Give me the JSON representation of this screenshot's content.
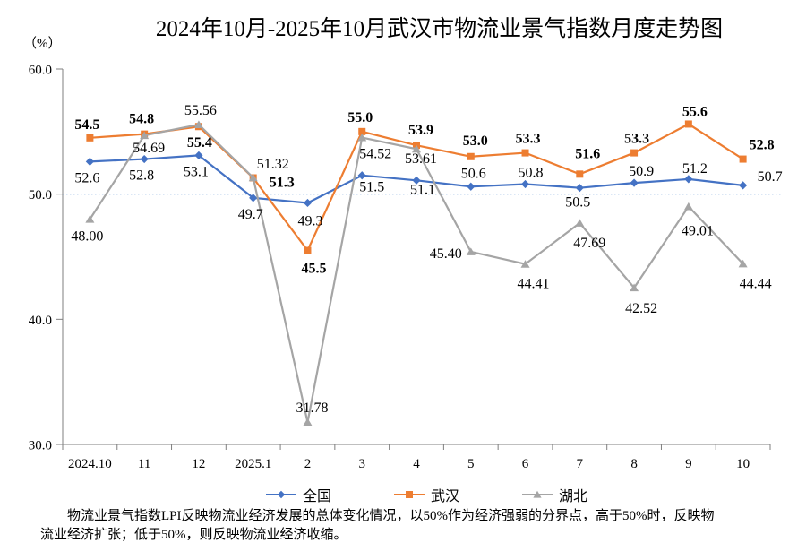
{
  "title": "2024年10月-2025年10月武汉市物流业景气指数月度走势图",
  "unit_label": "（%）",
  "footnote": "物流业景气指数LPI反映物流业经济发展的总体变化情况，以50%作为经济强弱的分界点，高于50%时，反映物流业经济扩张；低于50%，则反映物流业经济收缩。",
  "colors": {
    "axis": "#7f7f7f",
    "reference_line": "#6f9ed7",
    "national": "#4472C4",
    "wuhan": "#ED7D31",
    "hubei": "#A5A5A5",
    "label_text": "#000000"
  },
  "chart_data": {
    "type": "line",
    "title": "2024年10月-2025年10月武汉市物流业景气指数月度走势图",
    "xlabel": "",
    "ylabel": "（%）",
    "categories": [
      "2024.10",
      "11",
      "12",
      "2025.1",
      "2",
      "3",
      "4",
      "5",
      "6",
      "7",
      "8",
      "9",
      "10"
    ],
    "ylim": [
      30.0,
      60.0
    ],
    "yticks": [
      60.0,
      50.0,
      40.0,
      30.0
    ],
    "ytick_labels": [
      "60.0",
      "50.0",
      "40.0",
      "30.0"
    ],
    "reference_line": 50.0,
    "grid": false,
    "legend_position": "bottom",
    "series": [
      {
        "name": "全国",
        "color": "#4472C4",
        "marker": "diamond",
        "bold_labels": false,
        "values": [
          52.6,
          52.8,
          53.1,
          49.7,
          49.3,
          51.5,
          51.1,
          50.6,
          50.8,
          50.5,
          50.9,
          51.2,
          50.7
        ],
        "labels": [
          "52.6",
          "52.8",
          "53.1",
          "49.7",
          "49.3",
          "51.5",
          "51.1",
          "50.6",
          "50.8",
          "50.5",
          "50.9",
          "51.2",
          "50.7"
        ],
        "label_dx": [
          -3,
          -3,
          -3,
          -3,
          3,
          11,
          7,
          3,
          6,
          -2,
          8,
          7,
          30
        ],
        "label_dy": [
          23,
          23,
          23,
          23,
          25,
          18,
          15,
          -10,
          -8,
          21,
          -8,
          -7,
          -5
        ]
      },
      {
        "name": "武汉",
        "color": "#ED7D31",
        "marker": "square",
        "bold_labels": true,
        "values": [
          54.5,
          54.8,
          55.4,
          51.3,
          45.5,
          55.0,
          53.9,
          53.0,
          53.3,
          51.6,
          53.3,
          55.6,
          52.8
        ],
        "labels": [
          "54.5",
          "54.8",
          "55.4",
          "51.3",
          "45.5",
          "55.0",
          "53.9",
          "53.0",
          "53.3",
          "51.6",
          "53.3",
          "55.6",
          "52.8"
        ],
        "label_dx": [
          -3,
          -3,
          1,
          32,
          7,
          -2,
          5,
          5,
          3,
          9,
          3,
          7,
          21
        ],
        "label_dy": [
          -10,
          -12,
          23,
          10,
          25,
          -11,
          -12,
          -13,
          -11,
          -18,
          -11,
          -9,
          -11
        ]
      },
      {
        "name": "湖北",
        "color": "#A5A5A5",
        "marker": "triangle",
        "bold_labels": false,
        "values": [
          48.0,
          54.69,
          55.56,
          51.32,
          31.78,
          54.52,
          53.61,
          45.4,
          44.41,
          47.69,
          42.52,
          49.01,
          44.44
        ],
        "labels": [
          "48.00",
          "54.69",
          "55.56",
          "51.32",
          "31.78",
          "54.52",
          "53.61",
          "45.40",
          "44.41",
          "47.69",
          "42.52",
          "49.01",
          "44.44"
        ],
        "label_dx": [
          -3,
          5,
          2,
          22,
          5,
          15,
          5,
          -28,
          9,
          11,
          8,
          10,
          14
        ],
        "label_dy": [
          24,
          19,
          -11,
          -10,
          -11,
          23,
          16,
          7,
          27,
          27,
          28,
          32,
          27
        ]
      }
    ]
  }
}
